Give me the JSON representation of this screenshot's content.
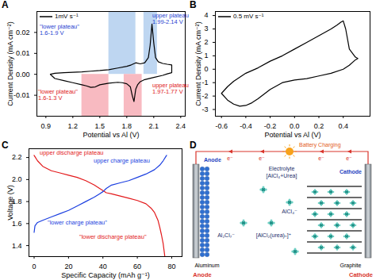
{
  "chart_data": [
    {
      "panel": "A",
      "type": "line",
      "xlabel": "Potential vs Al (V)",
      "ylabel": "Current Density (mA cm⁻²)",
      "xlim": [
        0.8,
        2.45
      ],
      "xticks": [
        0.9,
        1.2,
        1.5,
        1.8,
        2.1,
        2.4
      ],
      "ylim": [
        -0.02,
        0.03
      ],
      "yticks": [
        -0.01,
        {
          "value": 0,
          "label": "0.00"
        },
        0.01,
        0.02
      ],
      "legend": "upper left",
      "series": [
        {
          "name": "1mV s⁻¹",
          "color": "#000000",
          "x": [
            0.95,
            1.0,
            1.1,
            1.2,
            1.3,
            1.4,
            1.5,
            1.6,
            1.7,
            1.8,
            1.85,
            1.9,
            1.95,
            2.0,
            2.04,
            2.06,
            2.08,
            2.1,
            2.12,
            2.15,
            2.2,
            2.25,
            2.3,
            2.3,
            2.25,
            2.2,
            2.1,
            2.0,
            1.95,
            1.92,
            1.9,
            1.88,
            1.86,
            1.84,
            1.8,
            1.75,
            1.7,
            1.6,
            1.5,
            1.45,
            1.4,
            1.35,
            1.3,
            1.2,
            1.1,
            1.0,
            0.95
          ],
          "values": [
            0.0,
            0.0005,
            0.0008,
            0.001,
            0.0012,
            0.0015,
            0.0018,
            0.0022,
            0.003,
            0.0038,
            0.0045,
            0.0055,
            0.005,
            0.0055,
            0.008,
            0.014,
            0.024,
            0.015,
            0.008,
            0.006,
            0.0052,
            0.0048,
            0.0045,
            0.0008,
            0.0002,
            -0.0005,
            -0.0015,
            -0.0025,
            -0.0035,
            -0.005,
            -0.007,
            -0.013,
            -0.01,
            -0.006,
            -0.0045,
            -0.004,
            -0.0038,
            -0.0042,
            -0.005,
            -0.006,
            -0.0062,
            -0.0055,
            -0.005,
            -0.004,
            -0.003,
            -0.002,
            0.0
          ]
        }
      ],
      "bands": [
        {
          "x1": 1.6,
          "x2": 1.9,
          "y1": 0,
          "y2": 0.03,
          "color": "#a8c8ec"
        },
        {
          "x1": 1.99,
          "x2": 2.14,
          "y1": 0,
          "y2": 0.03,
          "color": "#a8c8ec"
        },
        {
          "x1": 1.3,
          "x2": 1.6,
          "y1": -0.02,
          "y2": 0,
          "color": "#f5a3ac"
        },
        {
          "x1": 1.77,
          "x2": 1.97,
          "y1": -0.02,
          "y2": 0,
          "color": "#f5a3ac"
        }
      ],
      "annotations": [
        {
          "text": [
            "\"lower plateau\"",
            "1.6-1.9 V"
          ],
          "color": "#1f3fd1"
        },
        {
          "text": [
            "upper plateau",
            "1.99-2.14 V"
          ],
          "color": "#1f3fd1"
        },
        {
          "text": [
            "\"lower plateau\"",
            "1.6-1.3 V"
          ],
          "color": "#e0201b"
        },
        {
          "text": [
            "upper plateau",
            "1.97-1.77 V"
          ],
          "color": "#e0201b"
        }
      ]
    },
    {
      "panel": "B",
      "type": "line",
      "xlabel": "Potential vs Al (V)",
      "ylabel": "Current Density (mA cm⁻²)",
      "xlim": [
        -0.65,
        0.62
      ],
      "xticks": [
        -0.6,
        -0.4,
        -0.2,
        {
          "value": 0,
          "label": "0.0"
        },
        0.2,
        0.4
      ],
      "ylim": [
        -3.5,
        4.3
      ],
      "yticks": [
        -3,
        -2,
        -1,
        0,
        1,
        2,
        3,
        4
      ],
      "legend": "upper left",
      "series": [
        {
          "name": "0.5 mV s⁻¹",
          "color": "#000000",
          "x": [
            -0.6,
            -0.55,
            -0.5,
            -0.4,
            -0.3,
            -0.2,
            -0.1,
            0.0,
            0.1,
            0.2,
            0.3,
            0.35,
            0.38,
            0.4,
            0.42,
            0.45,
            0.5,
            0.52,
            0.5,
            0.45,
            0.4,
            0.3,
            0.2,
            0.1,
            0.0,
            -0.1,
            -0.2,
            -0.3,
            -0.35,
            -0.4,
            -0.45,
            -0.5,
            -0.55,
            -0.6
          ],
          "values": [
            -1.8,
            -1.3,
            -0.9,
            -0.3,
            0.1,
            0.6,
            1.0,
            1.5,
            2.0,
            2.5,
            3.0,
            3.3,
            3.5,
            3.6,
            3.0,
            1.5,
            0.9,
            0.8,
            0.7,
            0.3,
            0.0,
            -0.3,
            -0.5,
            -0.7,
            -0.8,
            -1.0,
            -1.5,
            -2.2,
            -2.5,
            -2.7,
            -2.75,
            -2.6,
            -2.3,
            -1.8
          ]
        }
      ]
    },
    {
      "panel": "C",
      "type": "line",
      "xlabel": "Specific Capacity (mAh g⁻¹)",
      "ylabel": "Voltage (V)",
      "xlim": [
        -3,
        86
      ],
      "xticks": [
        0,
        20,
        40,
        60,
        80
      ],
      "ylim": [
        1.3,
        2.28
      ],
      "yticks": [
        1.4,
        1.6,
        1.8,
        {
          "value": 2,
          "label": "2.0"
        },
        2.2
      ],
      "series": [
        {
          "color": "#e31a1c",
          "x": [
            0,
            2,
            5,
            10,
            15,
            20,
            25,
            30,
            35,
            38,
            40,
            42,
            45,
            50,
            55,
            60,
            65,
            68,
            70,
            72,
            73,
            74,
            75,
            75.5,
            76
          ],
          "values": [
            2.22,
            2.17,
            2.12,
            2.08,
            2.06,
            2.04,
            2.02,
            1.99,
            1.95,
            1.92,
            1.9,
            1.88,
            1.87,
            1.85,
            1.83,
            1.81,
            1.78,
            1.74,
            1.7,
            1.63,
            1.57,
            1.5,
            1.42,
            1.36,
            1.3
          ]
        },
        {
          "color": "#1b3fe0",
          "x": [
            0,
            0.5,
            2,
            5,
            10,
            15,
            20,
            25,
            30,
            35,
            38,
            40,
            42,
            45,
            50,
            55,
            60,
            65,
            70,
            73,
            75,
            77
          ],
          "values": [
            1.52,
            1.58,
            1.61,
            1.63,
            1.66,
            1.69,
            1.72,
            1.76,
            1.8,
            1.84,
            1.87,
            1.89,
            1.92,
            1.95,
            1.97,
            1.99,
            2.02,
            2.05,
            2.09,
            2.13,
            2.17,
            2.22
          ]
        }
      ],
      "annotations": [
        {
          "text": [
            "upper discharge plateau"
          ],
          "color": "#e31a1c"
        },
        {
          "text": [
            "upper charge plateau"
          ],
          "color": "#1b3fe0"
        },
        {
          "text": [
            "\"lower charge plateau\""
          ],
          "color": "#1b3fe0"
        },
        {
          "text": [
            "\"lower discharge plateau\""
          ],
          "color": "#e31a1c"
        }
      ]
    }
  ],
  "diagram": {
    "panel": "D",
    "title": "Battery Charging",
    "electron": "e⁻",
    "electrolyte": [
      "Electrolyte",
      "[AlCl₄+Urea]"
    ],
    "anode_label": "Anode",
    "cathode_label": "Cathode",
    "anode_material": "Aluminum",
    "cathode_material": "Graphite",
    "ions": [
      "AlCl₄⁻",
      "Al₂Cl₇⁻",
      "[AlCl₂(urea)ₙ]⁺"
    ],
    "bottom_labels": [
      "Anode",
      "Cathode"
    ]
  }
}
